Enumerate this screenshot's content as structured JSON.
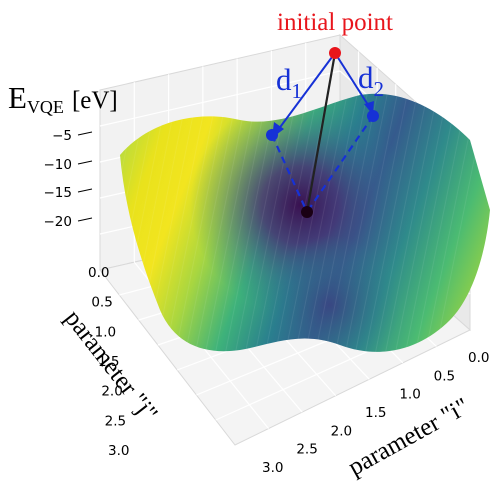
{
  "chart_data": {
    "type": "surface3d",
    "title": "",
    "zlabel": {
      "main": "E",
      "sub": "VQE",
      "unit": "[eV]"
    },
    "xlabel": "parameter \"i\"",
    "ylabel": "parameter \"j\"",
    "z_ticks": [
      "−5",
      "−10",
      "−15",
      "−20"
    ],
    "j_ticks": [
      "0.0",
      "0.5",
      "1.0",
      "1.5",
      "2.0",
      "2.5",
      "3.0"
    ],
    "i_ticks": [
      "0.0",
      "0.5",
      "1.0",
      "1.5",
      "2.0",
      "2.5",
      "3.0"
    ],
    "colormap": "viridis",
    "colors": {
      "initial_point": "#e8151c",
      "step": "#1631d6",
      "minimum": "#1a0014",
      "path": "#222222"
    },
    "annotations": {
      "initial_point": "initial point",
      "d1": {
        "main": "d",
        "sub": "1"
      },
      "d2": {
        "main": "d",
        "sub": "2"
      }
    }
  }
}
